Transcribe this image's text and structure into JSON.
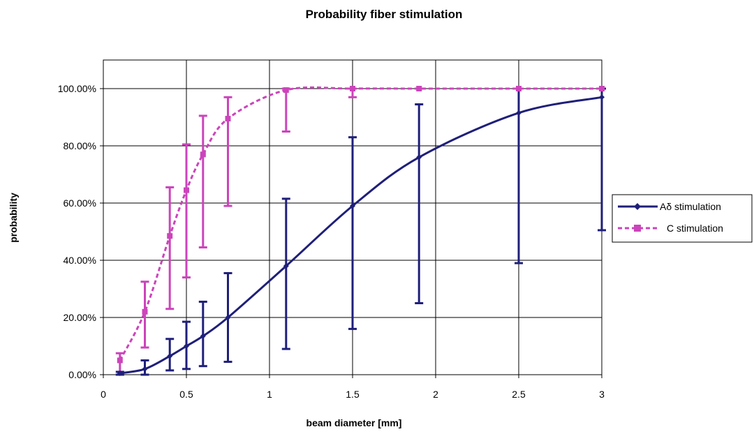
{
  "chart_data": {
    "type": "line",
    "title": "Probability fiber stimulation",
    "xlabel": "beam diameter [mm]",
    "ylabel": "probability",
    "xlim": [
      0,
      3
    ],
    "ylim": [
      0,
      1.1
    ],
    "x_ticks": [
      0,
      0.5,
      1,
      1.5,
      2,
      2.5,
      3
    ],
    "x_tick_labels": [
      "0",
      "0.5",
      "1",
      "1.5",
      "2",
      "2.5",
      "3"
    ],
    "y_ticks": [
      0,
      0.2,
      0.4,
      0.6,
      0.8,
      1.0
    ],
    "y_tick_labels": [
      "0.00%",
      "20.00%",
      "40.00%",
      "60.00%",
      "80.00%",
      "100.00%"
    ],
    "grid": true,
    "legend_position": "right",
    "series": [
      {
        "name": "Aδ stimulation",
        "color": "#1f1f7a",
        "line_style": "solid",
        "marker": "diamond",
        "points": [
          {
            "x": 0.1,
            "y": 0.005,
            "err_low": 0.0,
            "err_high": 0.01
          },
          {
            "x": 0.25,
            "y": 0.02,
            "err_low": 0.0,
            "err_high": 0.05
          },
          {
            "x": 0.4,
            "y": 0.065,
            "err_low": 0.015,
            "err_high": 0.125
          },
          {
            "x": 0.5,
            "y": 0.1,
            "err_low": 0.02,
            "err_high": 0.185
          },
          {
            "x": 0.6,
            "y": 0.135,
            "err_low": 0.03,
            "err_high": 0.255
          },
          {
            "x": 0.75,
            "y": 0.2,
            "err_low": 0.045,
            "err_high": 0.355
          },
          {
            "x": 1.1,
            "y": 0.38,
            "err_low": 0.09,
            "err_high": 0.615
          },
          {
            "x": 1.5,
            "y": 0.59,
            "err_low": 0.16,
            "err_high": 0.83
          },
          {
            "x": 1.9,
            "y": 0.76,
            "err_low": 0.25,
            "err_high": 0.945
          },
          {
            "x": 2.5,
            "y": 0.915,
            "err_low": 0.39,
            "err_high": 1.0
          },
          {
            "x": 3.0,
            "y": 0.97,
            "err_low": 0.505,
            "err_high": 1.0
          }
        ]
      },
      {
        "name": "C stimulation",
        "color": "#cc44bb",
        "line_style": "dashed",
        "marker": "square",
        "points": [
          {
            "x": 0.1,
            "y": 0.05,
            "err_low": 0.0,
            "err_high": 0.075
          },
          {
            "x": 0.25,
            "y": 0.22,
            "err_low": 0.095,
            "err_high": 0.325
          },
          {
            "x": 0.4,
            "y": 0.485,
            "err_low": 0.23,
            "err_high": 0.655
          },
          {
            "x": 0.5,
            "y": 0.645,
            "err_low": 0.34,
            "err_high": 0.805
          },
          {
            "x": 0.6,
            "y": 0.77,
            "err_low": 0.445,
            "err_high": 0.905
          },
          {
            "x": 0.75,
            "y": 0.895,
            "err_low": 0.59,
            "err_high": 0.97
          },
          {
            "x": 1.1,
            "y": 0.995,
            "err_low": 0.85,
            "err_high": 1.0
          },
          {
            "x": 1.5,
            "y": 1.0,
            "err_low": 0.97,
            "err_high": 1.0
          },
          {
            "x": 1.9,
            "y": 1.0,
            "err_low": 1.0,
            "err_high": 1.0
          },
          {
            "x": 2.5,
            "y": 1.0,
            "err_low": 1.0,
            "err_high": 1.0
          },
          {
            "x": 3.0,
            "y": 1.0,
            "err_low": 1.0,
            "err_high": 1.0
          }
        ]
      }
    ]
  }
}
